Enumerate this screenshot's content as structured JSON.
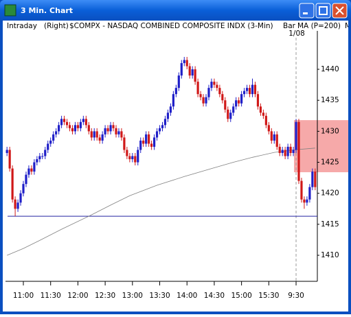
{
  "window": {
    "title": "3 Min. Chart"
  },
  "header": {
    "items": [
      "Intraday",
      "(Right)",
      "$COMPX - NASDAQ COMBINED COMPOSITE INDX (3-Min)",
      "Bar",
      "MA (P=200)",
      "M"
    ]
  },
  "chart_data": {
    "type": "candlestick",
    "date_label": "1/08",
    "open": [
      1426.5,
      1427,
      1424,
      1419,
      1417.5,
      1418.5,
      1420,
      1421.5,
      1423,
      1424,
      1423.5,
      1425,
      1425.5,
      1426,
      1426,
      1427,
      1428,
      1428.5,
      1429.5,
      1430,
      1431,
      1432,
      1431.5,
      1431,
      1430.5,
      1430,
      1431,
      1430.5,
      1431.5,
      1432,
      1431,
      1430,
      1429,
      1430,
      1429,
      1428.5,
      1429.5,
      1430.5,
      1430,
      1431,
      1430.5,
      1429.5,
      1430,
      1429,
      1427,
      1426,
      1425.5,
      1426,
      1425,
      1427,
      1428.5,
      1428,
      1429.5,
      1428,
      1427.5,
      1429,
      1430,
      1430.5,
      1431,
      1432,
      1433,
      1434,
      1436,
      1437,
      1439,
      1441,
      1441.5,
      1440.5,
      1439,
      1440,
      1438,
      1436,
      1435.5,
      1434.5,
      1435.5,
      1437,
      1438,
      1437.5,
      1437,
      1436,
      1435,
      1433.5,
      1432,
      1433,
      1434,
      1435,
      1434.5,
      1436,
      1436.5,
      1437,
      1436,
      1437.5,
      1436,
      1434,
      1433,
      1432.5,
      1431,
      1430,
      1428.5,
      1429.5,
      1427.5,
      1426.5,
      1427,
      1426,
      1427.5,
      1426.5,
      1427,
      1431.5,
      1422,
      1419,
      1418.5,
      1419,
      1421,
      1423.5
    ],
    "high": [
      1427.5,
      1427.5,
      1424.5,
      1419.5,
      1419,
      1420.5,
      1422,
      1423.5,
      1424.5,
      1424.5,
      1425.5,
      1426,
      1426.5,
      1426.5,
      1427.5,
      1428.5,
      1429,
      1430,
      1430.5,
      1431.5,
      1432.5,
      1432.5,
      1432,
      1431.5,
      1431,
      1431.5,
      1431.5,
      1432,
      1432.5,
      1432.5,
      1431.5,
      1430.5,
      1430.5,
      1430.5,
      1429.5,
      1430,
      1431,
      1431,
      1431.5,
      1431.5,
      1431,
      1430.5,
      1430.5,
      1429.5,
      1427.5,
      1426.5,
      1426.5,
      1426.5,
      1427.5,
      1429,
      1429,
      1430,
      1430,
      1428.5,
      1429.5,
      1430.5,
      1431,
      1431.5,
      1432.5,
      1433.5,
      1434.5,
      1436.5,
      1437.5,
      1439.5,
      1441.5,
      1442,
      1442,
      1441,
      1440.5,
      1440.5,
      1438.5,
      1436.5,
      1436,
      1436,
      1437.5,
      1438.5,
      1438.5,
      1438,
      1437.5,
      1436.5,
      1435.5,
      1434,
      1433.5,
      1434.5,
      1435.5,
      1435.5,
      1436.5,
      1437,
      1437.5,
      1437.5,
      1438.5,
      1438,
      1436.5,
      1434.5,
      1433.5,
      1433,
      1431.5,
      1430.5,
      1430,
      1430,
      1428,
      1427.5,
      1427.5,
      1428,
      1428,
      1427.5,
      1432,
      1432,
      1422.5,
      1419.5,
      1419.5,
      1421.5,
      1424,
      1424
    ],
    "low": [
      1426,
      1423.5,
      1418.5,
      1416.3,
      1417,
      1418,
      1419.5,
      1421,
      1422.5,
      1423,
      1423,
      1424.5,
      1425,
      1425.5,
      1425.5,
      1426.5,
      1427.5,
      1428,
      1429,
      1429.5,
      1430.5,
      1431,
      1430.5,
      1430,
      1429.5,
      1429.5,
      1430,
      1430,
      1431,
      1430.5,
      1429.5,
      1428.5,
      1428.5,
      1428.5,
      1428,
      1428,
      1429,
      1429.5,
      1429.5,
      1430,
      1429,
      1429,
      1428.5,
      1426.5,
      1425.5,
      1425,
      1425,
      1424.5,
      1424.5,
      1426.5,
      1427.5,
      1427.5,
      1427.5,
      1427,
      1427,
      1428.5,
      1429.5,
      1430,
      1430.5,
      1431.5,
      1432.5,
      1433.5,
      1435.5,
      1436.5,
      1438.5,
      1440.5,
      1440,
      1438.5,
      1438.5,
      1437.5,
      1435.5,
      1435,
      1434,
      1434,
      1435,
      1436.5,
      1437,
      1436.5,
      1435.5,
      1434.5,
      1433,
      1431.5,
      1431.5,
      1432.5,
      1433.5,
      1434,
      1434,
      1435.5,
      1436,
      1435.5,
      1435.5,
      1435.5,
      1433.5,
      1432.5,
      1432,
      1430.5,
      1429.5,
      1428,
      1428,
      1427,
      1426,
      1426,
      1425.5,
      1425.5,
      1426,
      1426,
      1426.5,
      1421.5,
      1418.5,
      1417.5,
      1418,
      1418.5,
      1420.5,
      1420.5
    ],
    "close": [
      1427,
      1424,
      1419,
      1417.5,
      1418.5,
      1420,
      1421.5,
      1423,
      1424,
      1423.5,
      1425,
      1425.5,
      1426,
      1426,
      1427,
      1428,
      1428.5,
      1429.5,
      1430,
      1431,
      1432,
      1431.5,
      1431,
      1430.5,
      1430,
      1431,
      1430.5,
      1431.5,
      1432,
      1431,
      1430,
      1429,
      1430,
      1429,
      1428.5,
      1429.5,
      1430.5,
      1430,
      1431,
      1430.5,
      1429.5,
      1430,
      1429,
      1427,
      1426,
      1425.5,
      1426,
      1425,
      1427,
      1428.5,
      1428,
      1429.5,
      1428,
      1427.5,
      1429,
      1430,
      1430.5,
      1431,
      1432,
      1433,
      1434,
      1436,
      1437,
      1439,
      1441,
      1441.5,
      1440.5,
      1439,
      1440,
      1438,
      1436,
      1435.5,
      1434.5,
      1435.5,
      1437,
      1438,
      1437.5,
      1437,
      1436,
      1435,
      1433.5,
      1432,
      1433,
      1434,
      1435,
      1434.5,
      1436,
      1436.5,
      1437,
      1436,
      1437.5,
      1436,
      1434,
      1433,
      1432.5,
      1431,
      1430,
      1428.5,
      1429.5,
      1427.5,
      1426.5,
      1427,
      1426,
      1427.5,
      1426.5,
      1427,
      1431.5,
      1422,
      1419,
      1418.5,
      1419,
      1421,
      1423.5,
      1421
    ],
    "up_color": "#1f1fc8",
    "down_color": "#d01818",
    "ma": {
      "color": "#808080",
      "x": [
        0,
        6,
        12,
        20,
        30,
        38,
        45,
        55,
        65,
        75,
        83,
        90,
        98,
        105,
        113
      ],
      "values": [
        1410,
        1411.1,
        1412.4,
        1414.2,
        1416.3,
        1418.1,
        1419.6,
        1421.3,
        1422.7,
        1424,
        1425,
        1425.8,
        1426.6,
        1427,
        1427.3
      ]
    },
    "hline": {
      "value": 1416.3,
      "color": "#2020a0"
    },
    "zone": {
      "from": 1423.4,
      "to": 1431.8,
      "color": "#f59a9a"
    },
    "xlim": [
      -0.55,
      113.8
    ],
    "xticks": [
      {
        "value": 6,
        "label": "11:00"
      },
      {
        "value": 16,
        "label": "11:30"
      },
      {
        "value": 26,
        "label": "12:00"
      },
      {
        "value": 36,
        "label": "12:30"
      },
      {
        "value": 46,
        "label": "13:00"
      },
      {
        "value": 56,
        "label": "13:30"
      },
      {
        "value": 66,
        "label": "14:00"
      },
      {
        "value": 76,
        "label": "14:30"
      },
      {
        "value": 86,
        "label": "15:00"
      },
      {
        "value": 96,
        "label": "15:30"
      },
      {
        "value": 106,
        "label": "9:30"
      }
    ],
    "ylim": [
      1405.8,
      1446.2
    ],
    "yticks": [
      1410,
      1415,
      1420,
      1425,
      1430,
      1435,
      1440
    ]
  }
}
